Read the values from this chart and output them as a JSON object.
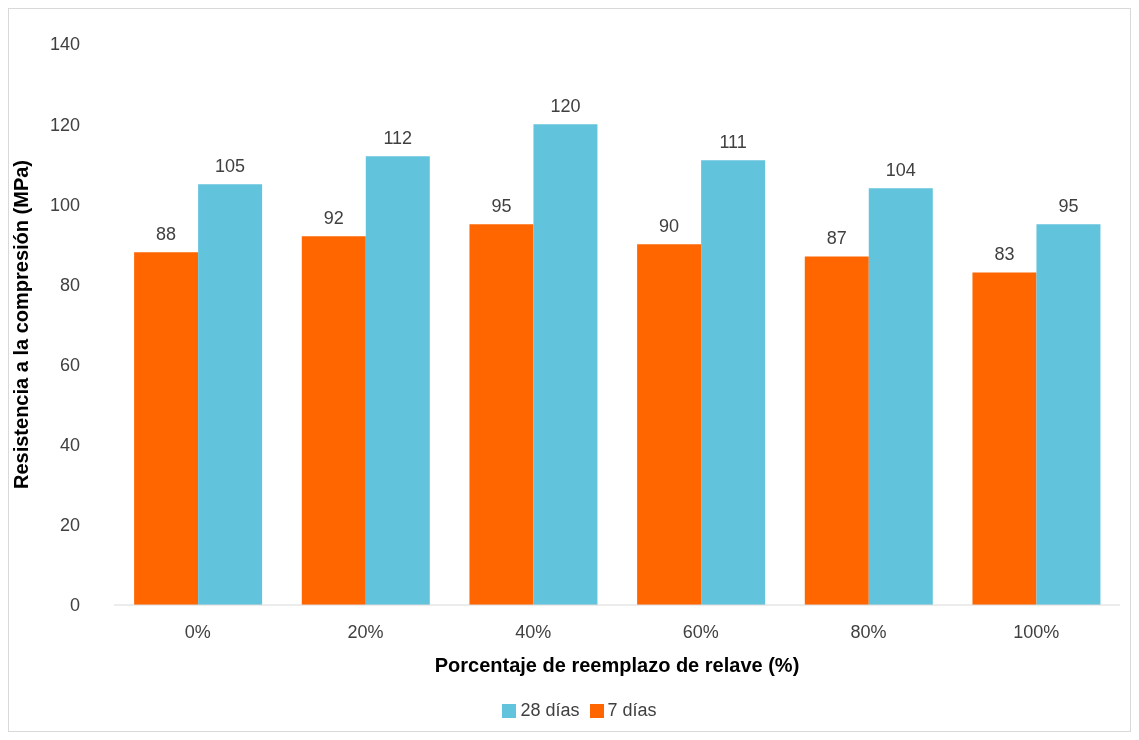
{
  "chart_data": {
    "type": "bar",
    "xlabel": "Porcentaje de reemplazo de relave (%)",
    "ylabel": "Resistencia a la compresión (MPa)",
    "categories": [
      "0%",
      "20%",
      "40%",
      "60%",
      "80%",
      "100%"
    ],
    "series": [
      {
        "name": "7 días",
        "color": "#ff6600",
        "values": [
          88,
          92,
          95,
          90,
          87,
          83
        ]
      },
      {
        "name": "28 días",
        "color": "#62c3dc",
        "values": [
          105,
          112,
          120,
          111,
          104,
          95
        ]
      }
    ],
    "ylim": [
      0,
      140
    ],
    "yticks": [
      0,
      20,
      40,
      60,
      80,
      100,
      120,
      140
    ],
    "grid": false,
    "legend": "bottom",
    "data_labels": true
  }
}
